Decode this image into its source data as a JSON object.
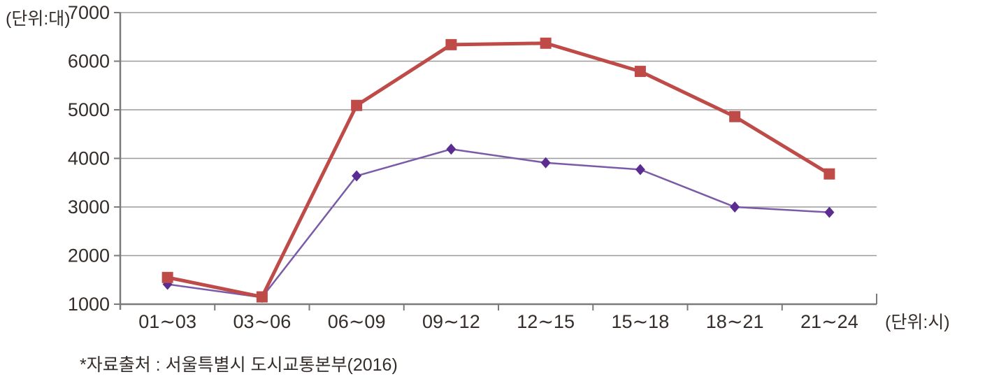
{
  "chart_data": {
    "type": "line",
    "title": "",
    "y_unit_label": "(단위:대)",
    "x_unit_label": "(단위:시)",
    "source_note": "*자료출처 : 서울특별시 도시교통본부(2016)",
    "categories": [
      "01∼03",
      "03∼06",
      "06∼09",
      "09∼12",
      "12∼15",
      "15∼18",
      "18∼21",
      "21∼24"
    ],
    "series": [
      {
        "name": "purple-diamond-series",
        "marker": "diamond",
        "line_color": "#7a5ba8",
        "marker_color": "#5b2d90",
        "line_width": 2.5,
        "values": [
          1410,
          1140,
          3640,
          4190,
          3910,
          3770,
          3000,
          2890
        ]
      },
      {
        "name": "red-square-series",
        "marker": "square",
        "line_color": "#be4b48",
        "marker_color": "#be4b48",
        "line_width": 5,
        "values": [
          1550,
          1150,
          5090,
          6340,
          6370,
          5790,
          4860,
          3680
        ]
      }
    ],
    "y_ticks": [
      1000,
      2000,
      3000,
      4000,
      5000,
      6000,
      7000
    ],
    "ylim": [
      1000,
      7000
    ],
    "grid": true,
    "legend": "none",
    "colors": {
      "gridline": "#9b9b9b",
      "axis": "#7a7a7a",
      "tick_text": "#352d2a"
    }
  }
}
